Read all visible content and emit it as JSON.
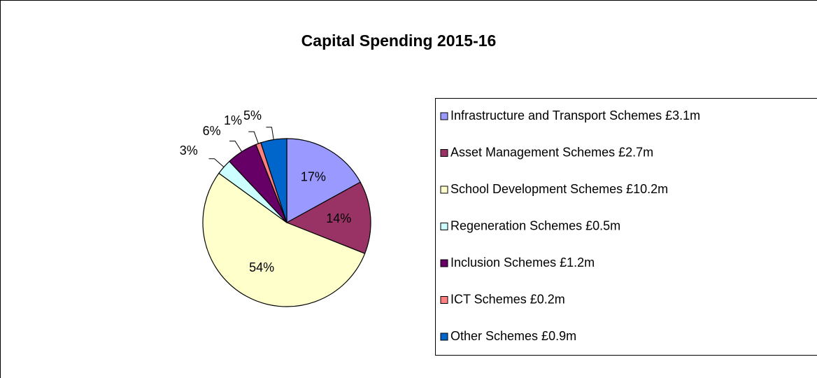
{
  "chart_data": {
    "type": "pie",
    "title": "Capital Spending 2015-16",
    "categories": [
      "Infrastructure and Transport Schemes £3.1m",
      "Asset Management Schemes £2.7m",
      "School Development Schemes £10.2m",
      "Regeneration Schemes £0.5m",
      "Inclusion Schemes £1.2m",
      "ICT Schemes £0.2m",
      "Other Schemes £0.9m"
    ],
    "values": [
      17,
      14,
      54,
      3,
      6,
      1,
      5
    ],
    "value_labels": [
      "17%",
      "14%",
      "54%",
      "3%",
      "6%",
      "1%",
      "5%"
    ],
    "colors": [
      "#9999ff",
      "#993366",
      "#ffffcc",
      "#ccffff",
      "#660066",
      "#ff8080",
      "#0066cc"
    ],
    "legend": "right"
  }
}
